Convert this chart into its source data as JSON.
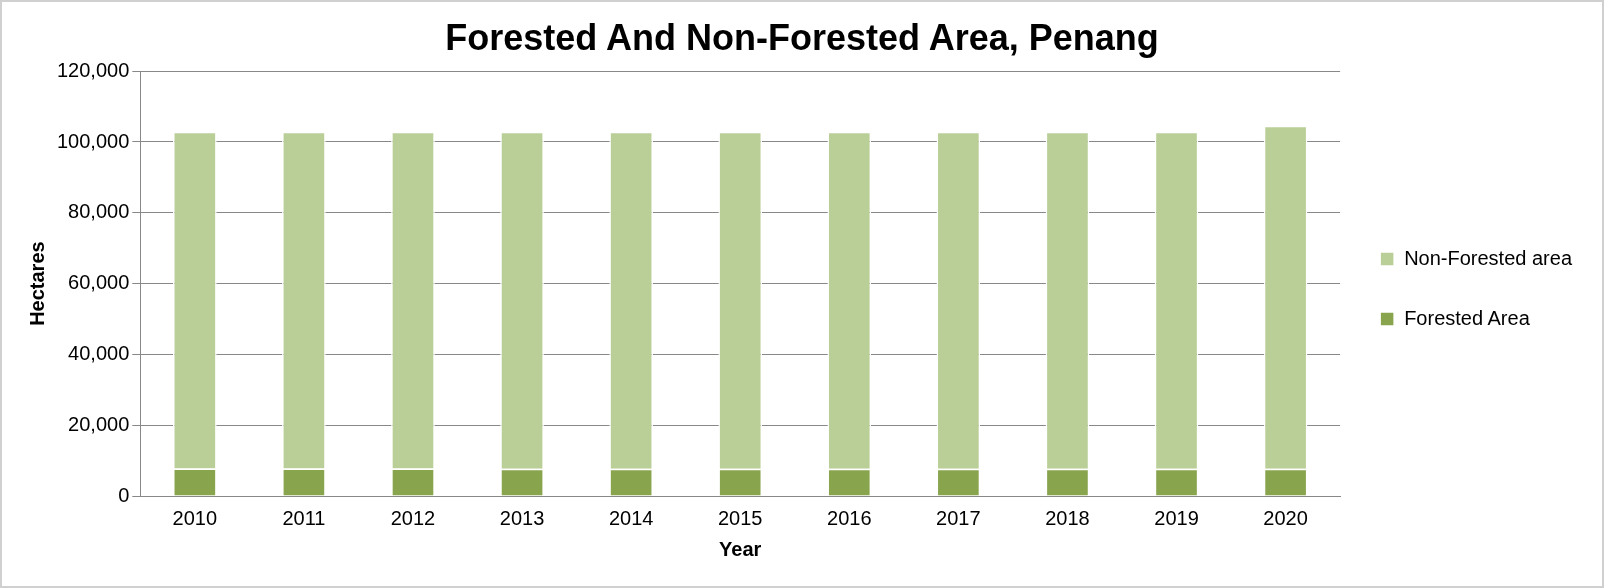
{
  "chart_data": {
    "type": "bar",
    "title": "Forested And Non-Forested Area, Penang",
    "xlabel": "Year",
    "ylabel": "Hectares",
    "categories": [
      "2010",
      "2011",
      "2012",
      "2013",
      "2014",
      "2015",
      "2016",
      "2017",
      "2018",
      "2019",
      "2020"
    ],
    "series": [
      {
        "name": "Forested Area",
        "color": "#88a44d",
        "values": [
          7800,
          7800,
          7800,
          7700,
          7700,
          7700,
          7700,
          7700,
          7700,
          7700,
          7700
        ]
      },
      {
        "name": "Non-Forested area",
        "color": "#bacf97",
        "values": [
          95100,
          95100,
          95100,
          95200,
          95200,
          95200,
          95200,
          95200,
          95200,
          95200,
          96900
        ]
      }
    ],
    "stacked": true,
    "ylim": [
      0,
      120000
    ],
    "yticks": [
      0,
      {
        "value": 20000,
        "label": "20,000"
      },
      {
        "value": 40000,
        "label": "40,000"
      },
      {
        "value": 60000,
        "label": "60,000"
      },
      {
        "value": 80000,
        "label": "80,000"
      },
      {
        "value": 100000,
        "label": "100,000"
      },
      {
        "value": 120000,
        "label": "120,000"
      }
    ],
    "grid": "y",
    "legend": "right"
  }
}
